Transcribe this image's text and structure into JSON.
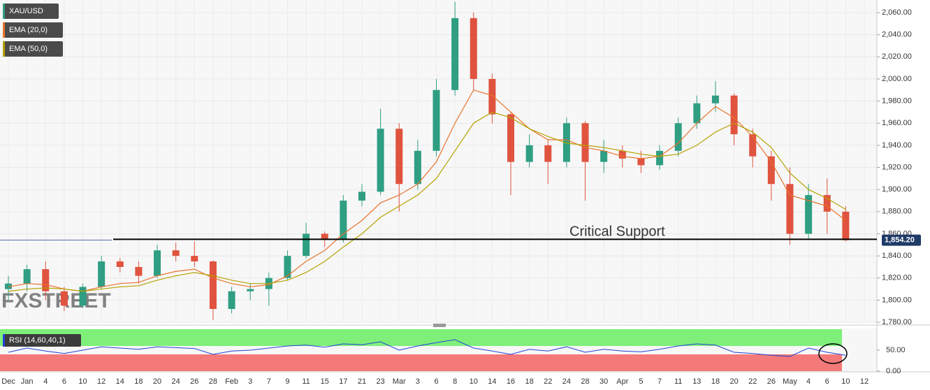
{
  "chart_data": [
    {
      "type": "candlestick",
      "symbol": "XAU/USD",
      "watermark": "FXSTREET",
      "up_color": "#2f9e82",
      "down_color": "#e0533e",
      "categories": [
        "Dec",
        "Jan",
        "4",
        "6",
        "10",
        "12",
        "14",
        "18",
        "20",
        "24",
        "26",
        "28",
        "Feb",
        "3",
        "7",
        "9",
        "11",
        "15",
        "17",
        "21",
        "23",
        "Mar",
        "3",
        "6",
        "8",
        "10",
        "14",
        "16",
        "18",
        "22",
        "24",
        "28",
        "30",
        "Apr",
        "5",
        "7",
        "11",
        "13",
        "18",
        "20",
        "22",
        "26",
        "May",
        "4",
        "6",
        "10",
        "12"
      ],
      "open": [
        1810,
        1815,
        1828,
        1808,
        1795,
        1812,
        1835,
        1830,
        1822,
        1845,
        1840,
        1835,
        1792,
        1808,
        1810,
        1820,
        1840,
        1860,
        1855,
        1890,
        1898,
        1955,
        1905,
        1935,
        1990,
        2055,
        2000,
        1968,
        1925,
        1940,
        1925,
        1960,
        1925,
        1935,
        1928,
        1922,
        1935,
        1960,
        1978,
        1985,
        1950,
        1930,
        1905,
        1860,
        1895,
        1880,
        null
      ],
      "high": [
        1822,
        1832,
        1835,
        1812,
        1815,
        1840,
        1838,
        1835,
        1850,
        1852,
        1853,
        1836,
        1812,
        1815,
        1825,
        1845,
        1870,
        1862,
        1895,
        1905,
        1973,
        1960,
        1945,
        2000,
        2070,
        2060,
        2005,
        1970,
        1950,
        1945,
        1965,
        1962,
        1945,
        1940,
        1935,
        1940,
        1965,
        1985,
        1998,
        1987,
        1955,
        1935,
        1920,
        1905,
        1910,
        1885,
        null
      ],
      "low": [
        1800,
        1808,
        1800,
        1790,
        1793,
        1810,
        1825,
        1815,
        1820,
        1835,
        1830,
        1782,
        1788,
        1800,
        1795,
        1818,
        1838,
        1848,
        1852,
        1885,
        1895,
        1880,
        1900,
        1930,
        1985,
        1990,
        1960,
        1895,
        1920,
        1905,
        1920,
        1890,
        1915,
        1920,
        1915,
        1918,
        1930,
        1955,
        1970,
        1940,
        1920,
        1890,
        1850,
        1855,
        1860,
        1853,
        null
      ],
      "close": [
        1815,
        1828,
        1808,
        1795,
        1812,
        1835,
        1830,
        1822,
        1845,
        1840,
        1835,
        1792,
        1808,
        1810,
        1820,
        1840,
        1860,
        1855,
        1890,
        1898,
        1955,
        1905,
        1935,
        1990,
        2055,
        2000,
        1968,
        1925,
        1940,
        1925,
        1960,
        1925,
        1935,
        1928,
        1922,
        1935,
        1960,
        1978,
        1985,
        1950,
        1930,
        1905,
        1860,
        1895,
        1880,
        1854.2,
        null
      ],
      "series": [
        {
          "name": "EMA (20,0)",
          "color": "#e8732c",
          "values": [
            1812,
            1815,
            1814,
            1810,
            1808,
            1812,
            1815,
            1816,
            1822,
            1826,
            1828,
            1820,
            1815,
            1812,
            1814,
            1822,
            1835,
            1845,
            1860,
            1872,
            1888,
            1895,
            1905,
            1925,
            1960,
            1990,
            1985,
            1970,
            1955,
            1945,
            1945,
            1938,
            1935,
            1930,
            1928,
            1930,
            1942,
            1960,
            1975,
            1965,
            1948,
            1925,
            1895,
            1890,
            1885,
            1872,
            null
          ]
        },
        {
          "name": "EMA (50,0)",
          "color": "#b5a200",
          "values": [
            1808,
            1810,
            1811,
            1810,
            1808,
            1810,
            1812,
            1813,
            1818,
            1822,
            1825,
            1822,
            1818,
            1815,
            1815,
            1818,
            1825,
            1835,
            1848,
            1860,
            1875,
            1885,
            1895,
            1910,
            1935,
            1960,
            1970,
            1965,
            1955,
            1948,
            1942,
            1940,
            1938,
            1935,
            1932,
            1930,
            1932,
            1940,
            1952,
            1960,
            1952,
            1938,
            1915,
            1900,
            1892,
            1882,
            null
          ]
        }
      ],
      "ylim": [
        1779.4,
        2071.4
      ],
      "yticks": [
        {
          "value": 1780,
          "label": "1,780.00"
        },
        {
          "value": 1800,
          "label": "1,800.00"
        },
        {
          "value": 1820,
          "label": "1,820.00"
        },
        {
          "value": 1840,
          "label": "1,840.00"
        },
        {
          "value": 1860,
          "label": "1,860.00"
        },
        {
          "value": 1880,
          "label": "1,880.00"
        },
        {
          "value": 1900,
          "label": "1,900.00"
        },
        {
          "value": 1920,
          "label": "1,920.00"
        },
        {
          "value": 1940,
          "label": "1,940.00"
        },
        {
          "value": 1960,
          "label": "1,960.00"
        },
        {
          "value": 1980,
          "label": "1,980.00"
        },
        {
          "value": 2000,
          "label": "2,000.00"
        },
        {
          "value": 2020,
          "label": "2,020.00"
        },
        {
          "value": 2040,
          "label": "2,040.00"
        },
        {
          "value": 2060,
          "label": "2,060.00"
        }
      ],
      "last_price": {
        "value": 1854.2,
        "label": "1,854.20"
      },
      "support": {
        "label": "Critical Support",
        "value": 1855
      },
      "grid": true
    },
    {
      "type": "line",
      "name": "RSI (14,60,40,1)",
      "color": "#2440d8",
      "values": [
        45,
        55,
        48,
        42,
        50,
        58,
        55,
        52,
        58,
        56,
        54,
        40,
        48,
        50,
        55,
        60,
        62,
        57,
        65,
        63,
        70,
        50,
        60,
        68,
        75,
        55,
        48,
        40,
        52,
        48,
        58,
        45,
        52,
        48,
        46,
        52,
        60,
        65,
        62,
        45,
        42,
        38,
        35,
        55,
        45,
        38,
        null
      ],
      "upper": 60,
      "lower": 40,
      "upper_color": "#7ef07a",
      "lower_color": "#f47a7a",
      "ylim": [
        0,
        100
      ],
      "yticks": [
        {
          "value": 50,
          "label": "50.00"
        },
        {
          "value": 0,
          "label": "0.00"
        }
      ]
    }
  ]
}
